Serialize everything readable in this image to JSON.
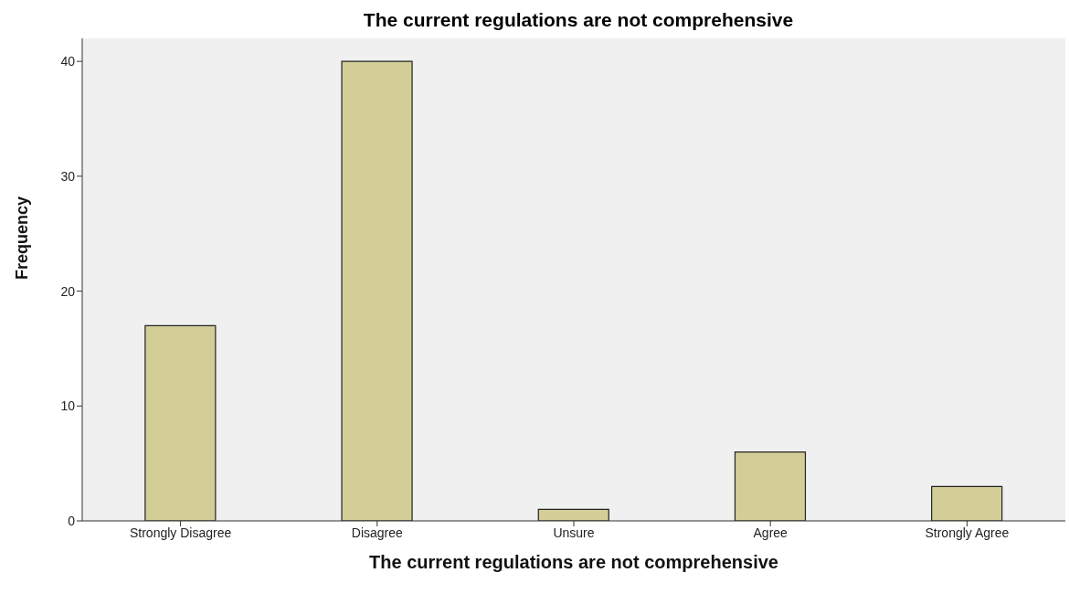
{
  "chart_data": {
    "type": "bar",
    "title": "The current regulations are not comprehensive",
    "xlabel": "The current regulations are not comprehensive",
    "ylabel": "Frequency",
    "categories": [
      "Strongly Disagree",
      "Disagree",
      "Unsure",
      "Agree",
      "Strongly Agree"
    ],
    "values": [
      17,
      40,
      1,
      6,
      3
    ],
    "color": "#d3ce97",
    "ylim": [
      0,
      42
    ],
    "yticks": [
      0,
      10,
      20,
      30,
      40
    ],
    "grid": false
  }
}
